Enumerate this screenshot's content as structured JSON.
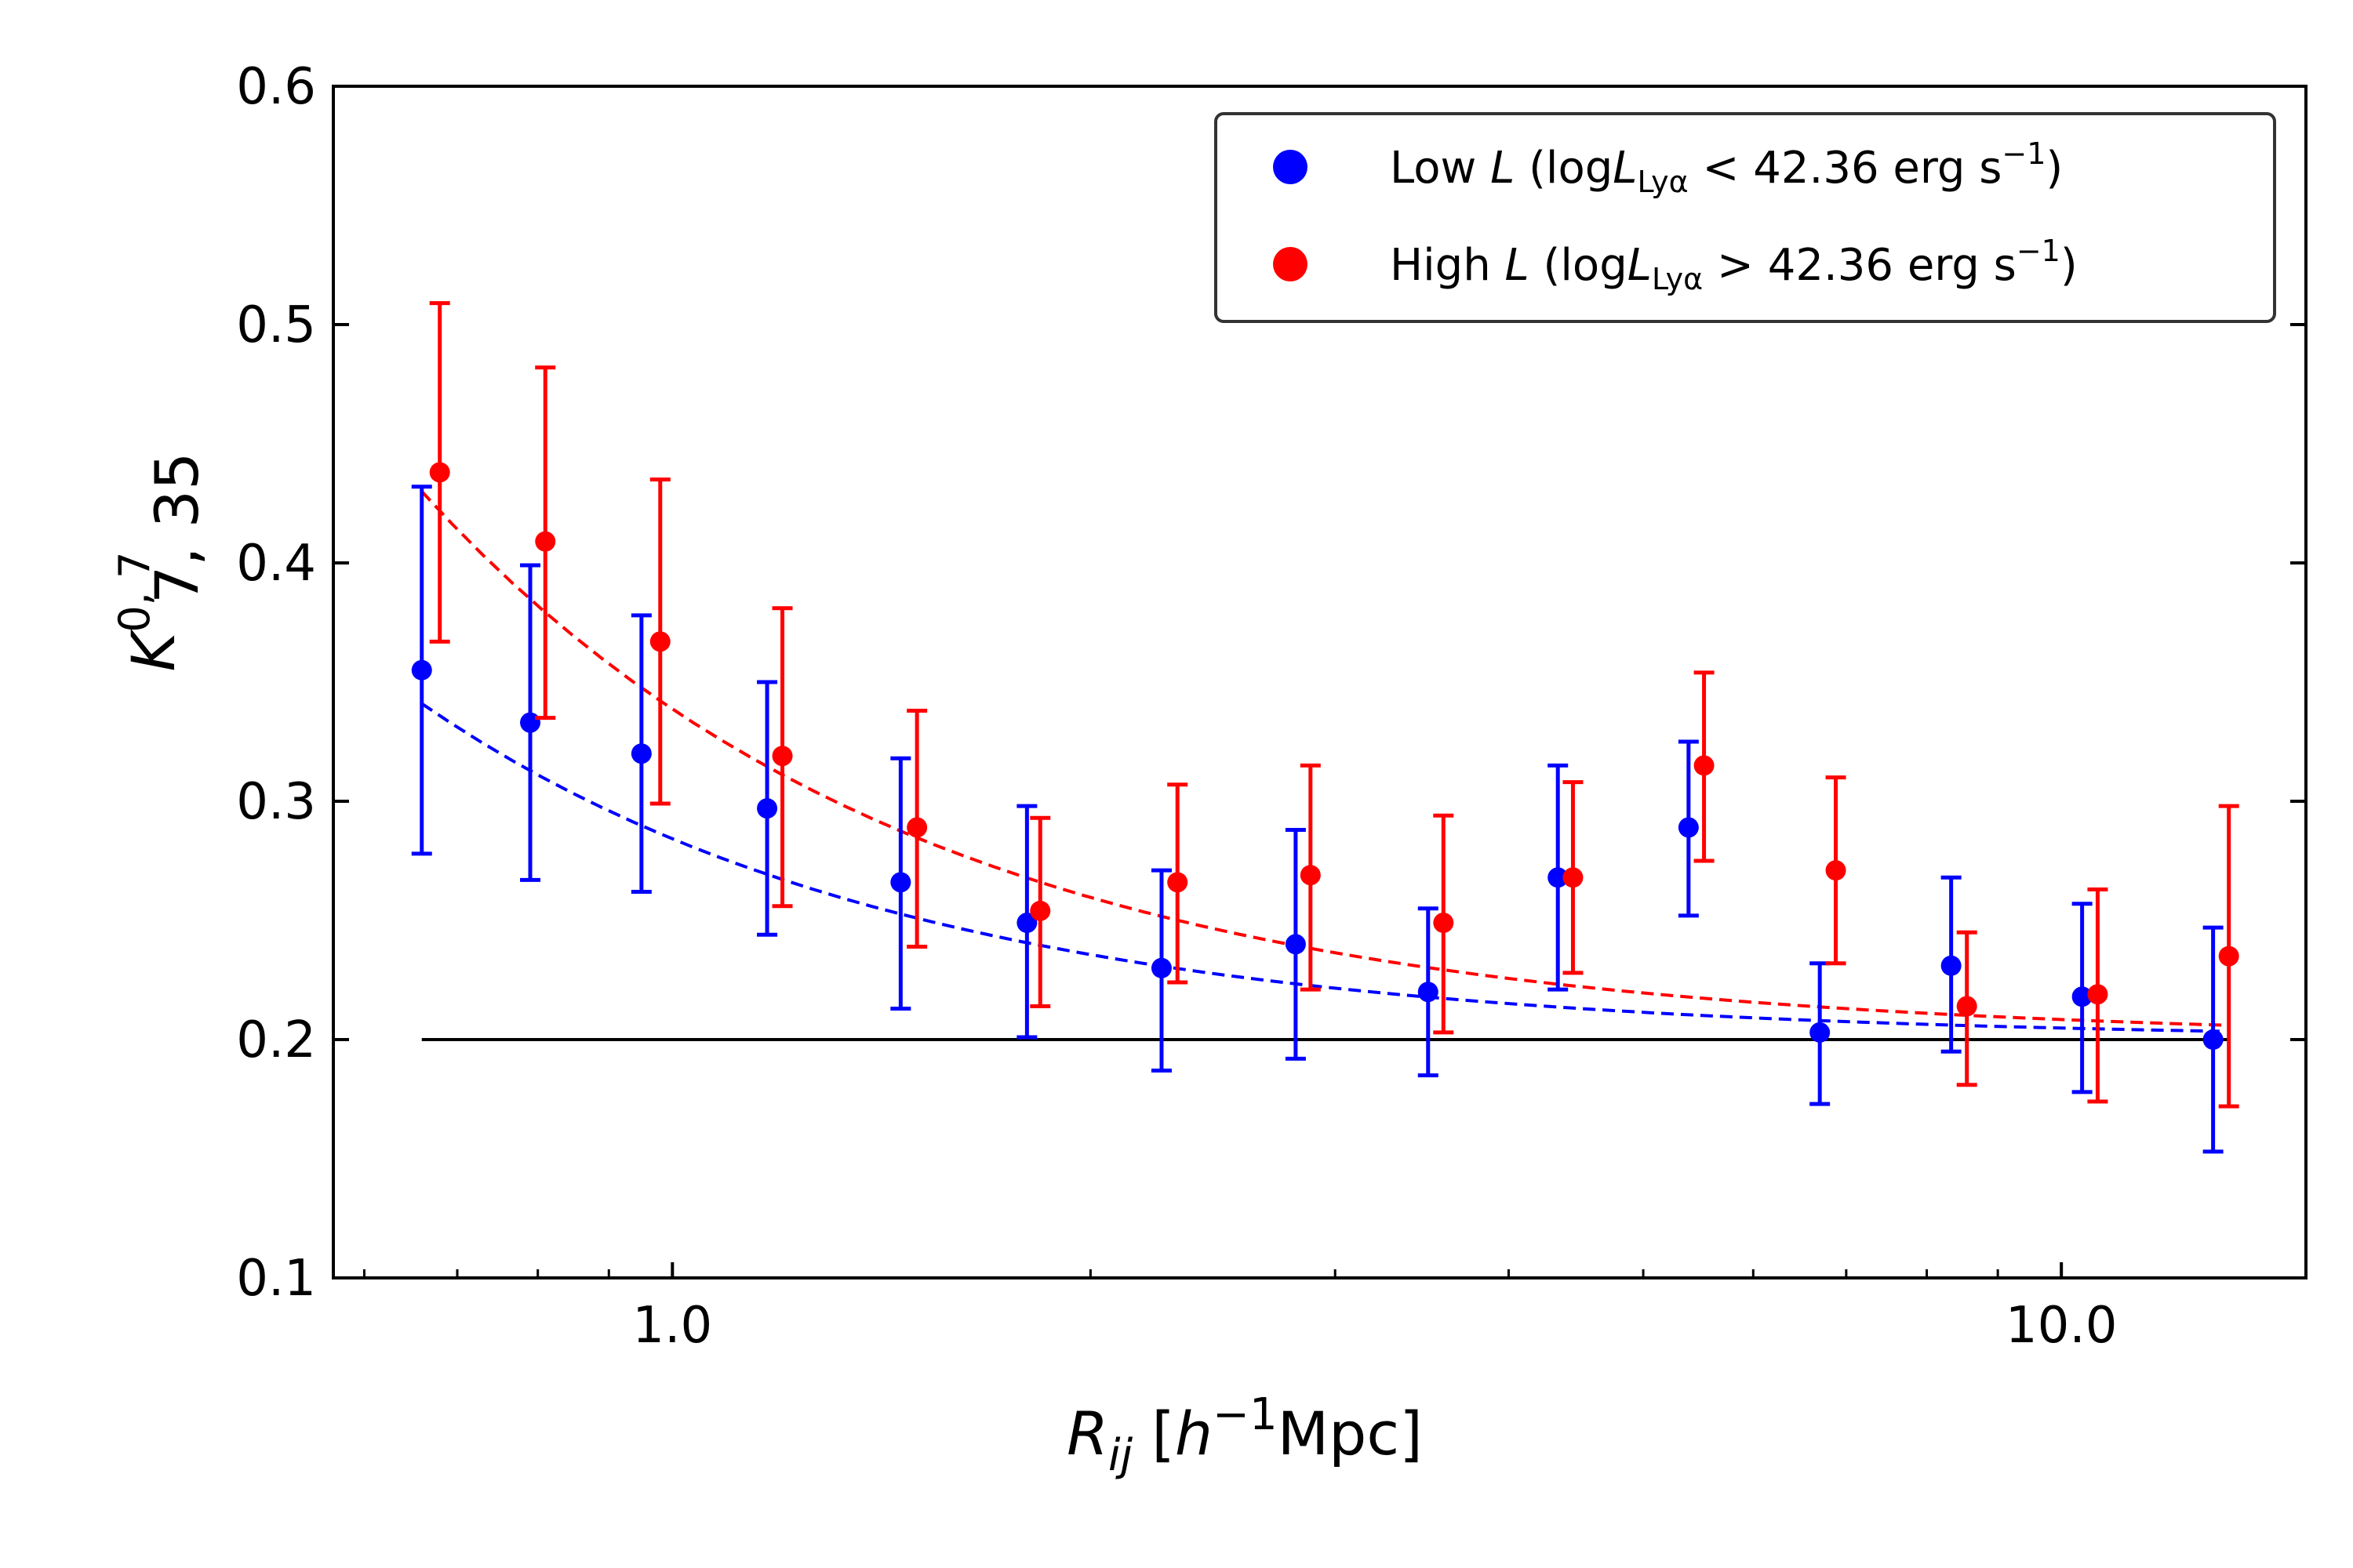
{
  "chart_data": {
    "type": "scatter",
    "title": "",
    "xlabel": {
      "main": "R",
      "sub": "ij",
      "open": " [",
      "h": "h",
      "sup": "−1",
      "unit": "Mpc]"
    },
    "ylabel": {
      "main": "K",
      "sup": "0, 7",
      "sub": "7, 35"
    },
    "xscale": "log",
    "xlim": [
      0.57,
      15.0
    ],
    "ylim": [
      0.1,
      0.6
    ],
    "x_ticks": [
      {
        "value": 1.0,
        "label": "1.0"
      },
      {
        "value": 10.0,
        "label": "10.0"
      }
    ],
    "y_ticks": [
      {
        "value": 0.1,
        "label": "0.1"
      },
      {
        "value": 0.2,
        "label": "0.2"
      },
      {
        "value": 0.3,
        "label": "0.3"
      },
      {
        "value": 0.4,
        "label": "0.4"
      },
      {
        "value": 0.5,
        "label": "0.5"
      },
      {
        "value": 0.6,
        "label": "0.6"
      }
    ],
    "legend_position": "top-right",
    "reference_line": {
      "y": 0.2,
      "x_range": [
        0.66,
        13.2
      ],
      "color": "#000000"
    },
    "series": [
      {
        "name": "low",
        "legend": {
          "a": "Low ",
          "L": "L",
          "b": " (log",
          "L2": "L",
          "sub": "Lyα",
          "c": " < 42.36 erg s",
          "sup": "−1",
          "d": ")"
        },
        "color": "#0000ff",
        "x": [
          0.66,
          0.79,
          0.95,
          1.17,
          1.46,
          1.8,
          2.25,
          2.81,
          3.5,
          4.34,
          5.39,
          6.7,
          8.33,
          10.35,
          12.86
        ],
        "y": [
          0.355,
          0.333,
          0.32,
          0.297,
          0.266,
          0.249,
          0.23,
          0.24,
          0.22,
          0.268,
          0.289,
          0.203,
          0.231,
          0.218,
          0.2
        ],
        "yerr_low": [
          0.278,
          0.267,
          0.262,
          0.244,
          0.213,
          0.201,
          0.187,
          0.192,
          0.185,
          0.221,
          0.252,
          0.173,
          0.195,
          0.178,
          0.153
        ],
        "yerr_high": [
          0.432,
          0.399,
          0.378,
          0.35,
          0.318,
          0.298,
          0.271,
          0.288,
          0.255,
          0.315,
          0.325,
          0.232,
          0.268,
          0.257,
          0.247
        ],
        "fit": {
          "x0": 0.66,
          "x1": 13.0,
          "y0": 0.341,
          "y1": 0.2035
        }
      },
      {
        "name": "high",
        "legend": {
          "a": "High ",
          "L": "L",
          "b": " (log",
          "L2": "L",
          "sub": "Lyα",
          "c": " > 42.36 erg s",
          "sup": "−1",
          "d": ")"
        },
        "color": "#ff0000",
        "x": [
          0.68,
          0.81,
          0.98,
          1.2,
          1.5,
          1.84,
          2.31,
          2.88,
          3.59,
          4.45,
          5.53,
          6.88,
          8.55,
          10.62,
          13.2
        ],
        "y": [
          0.438,
          0.409,
          0.367,
          0.319,
          0.289,
          0.254,
          0.266,
          0.269,
          0.249,
          0.268,
          0.315,
          0.271,
          0.214,
          0.219,
          0.235
        ],
        "yerr_low": [
          0.367,
          0.335,
          0.299,
          0.256,
          0.239,
          0.214,
          0.224,
          0.221,
          0.203,
          0.228,
          0.275,
          0.232,
          0.181,
          0.174,
          0.172
        ],
        "yerr_high": [
          0.509,
          0.482,
          0.435,
          0.381,
          0.338,
          0.293,
          0.307,
          0.315,
          0.294,
          0.308,
          0.354,
          0.31,
          0.245,
          0.263,
          0.298
        ],
        "fit": {
          "x0": 0.66,
          "x1": 13.2,
          "y0": 0.43,
          "y1": 0.206
        }
      }
    ]
  }
}
